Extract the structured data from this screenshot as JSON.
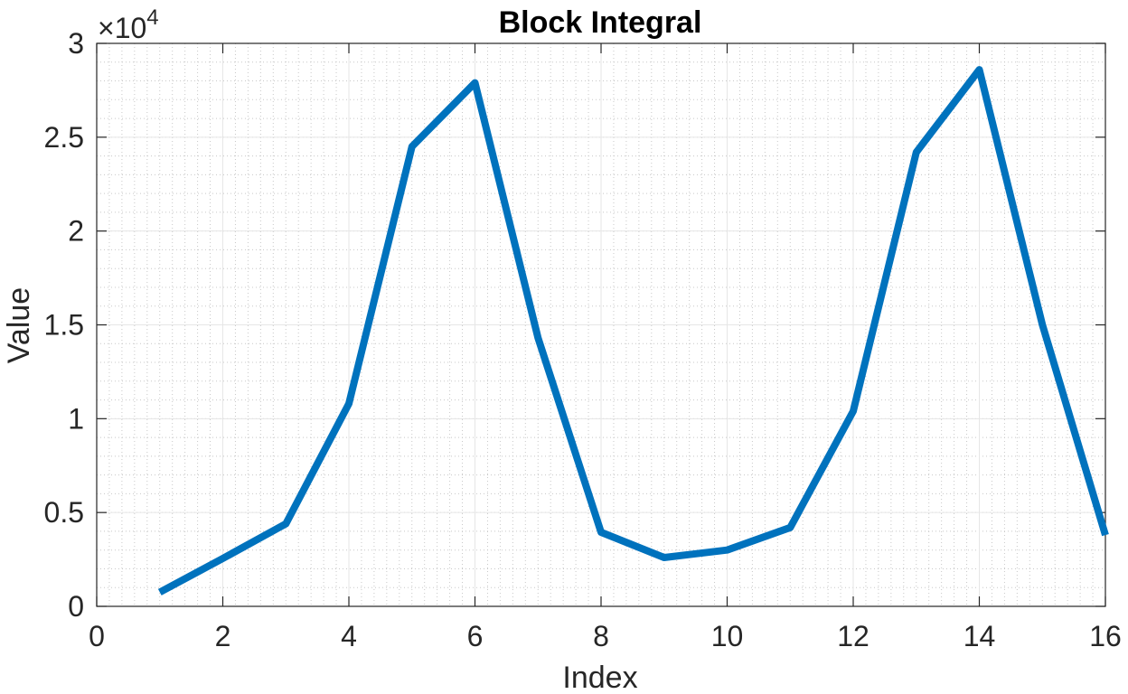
{
  "chart_data": {
    "type": "line",
    "title": "Block Integral",
    "xlabel": "Index",
    "ylabel": "Value",
    "xlim": [
      0,
      16
    ],
    "ylim": [
      0,
      30000
    ],
    "x_ticks": [
      "0",
      "2",
      "4",
      "6",
      "8",
      "10",
      "12",
      "14",
      "16"
    ],
    "y_ticks": [
      "0",
      "0.5",
      "1",
      "1.5",
      "2",
      "2.5",
      "3"
    ],
    "y_exponent_multiplier": "×10",
    "y_exponent_power": "4",
    "grid": "minor",
    "line_color": "#0072BD",
    "series": [
      {
        "x": [
          1,
          2,
          3,
          4,
          5,
          6,
          7,
          8,
          9,
          10,
          11,
          12,
          13,
          14,
          15,
          16
        ],
        "values": [
          750,
          2550,
          4400,
          10800,
          24500,
          27900,
          14300,
          3950,
          2600,
          3000,
          4200,
          10400,
          24200,
          28600,
          15000,
          3800
        ]
      }
    ]
  }
}
